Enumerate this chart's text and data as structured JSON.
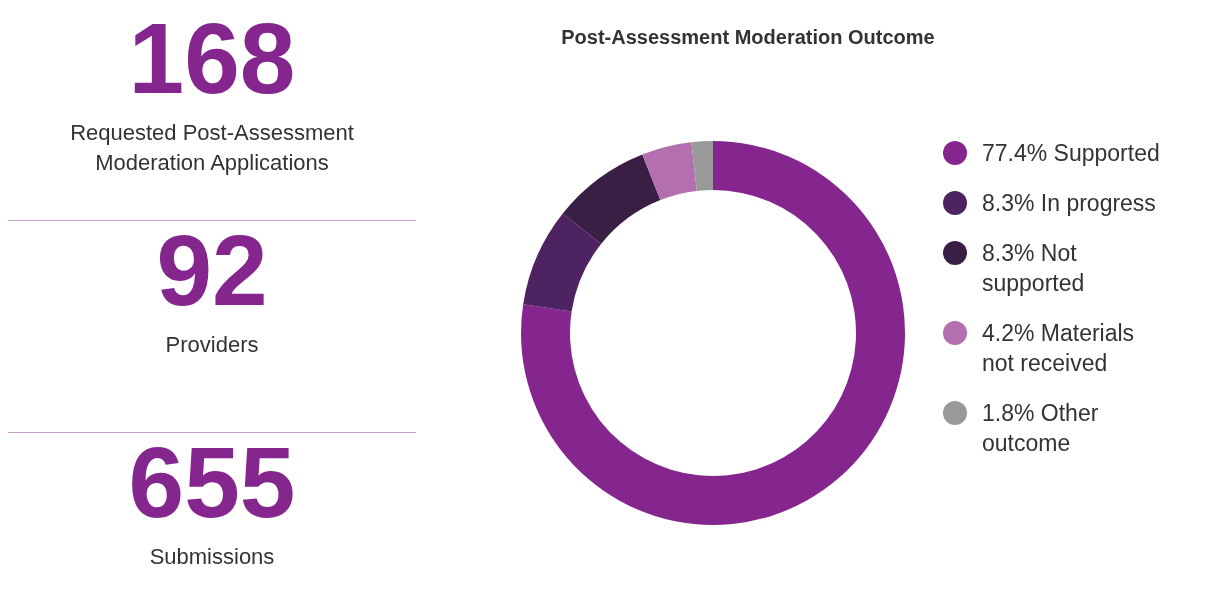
{
  "chart_data": [
    {
      "type": "other",
      "annotations": [
        "168",
        "Requested Post-Assessment Moderation Applications",
        "92",
        "Providers",
        "655",
        "Submissions"
      ],
      "color": "#85268f"
    },
    {
      "type": "donut",
      "title": "Post-Assessment Moderation Outcome",
      "categories": [
        "77.4% Supported",
        "8.3% In progress",
        "8.3% Not supported",
        "4.2% Materials not received",
        "1.8% Other outcome"
      ],
      "values": [
        77.4,
        8.3,
        8.3,
        4.2,
        1.8
      ],
      "colors": [
        "#85268f",
        "#4e2362",
        "#3a1f45",
        "#b36fb0",
        "#999999"
      ],
      "legend": "right"
    }
  ]
}
